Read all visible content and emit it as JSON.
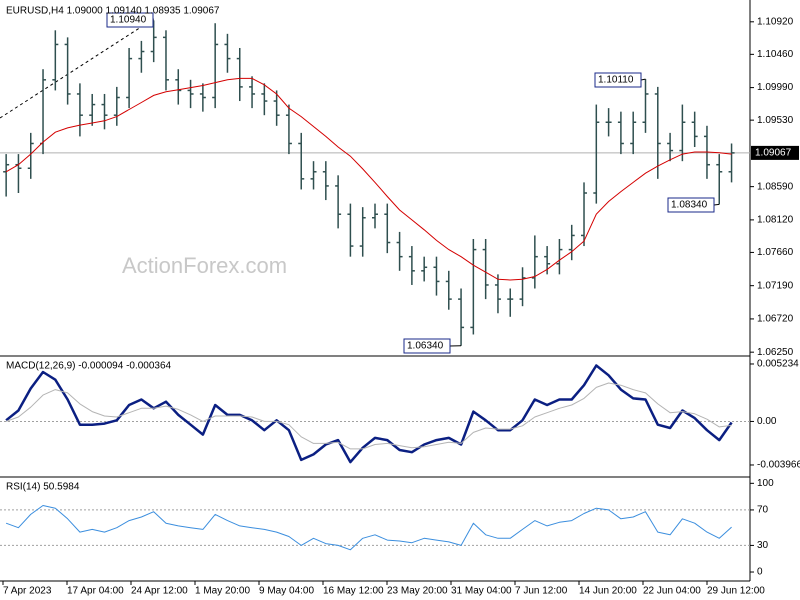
{
  "chart_data": [
    {
      "type": "ohlc",
      "title": "EURUSD,H4  1.09000 1.09140 1.08935 1.09067",
      "watermark": "ActionForex.com",
      "color": "#2f4f4f",
      "ma_color": "#d40000",
      "open": [
        1.088,
        1.089,
        1.0885,
        1.092,
        1.101,
        1.106,
        1.099,
        1.096,
        1.0975,
        1.096,
        1.0985,
        1.104,
        1.105,
        1.107,
        1.101,
        1.0995,
        1.099,
        1.0985,
        1.106,
        1.104,
        1.1,
        1.099,
        1.098,
        1.096,
        1.092,
        1.087,
        1.088,
        1.086,
        1.082,
        1.0775,
        1.0815,
        1.082,
        1.078,
        1.076,
        1.074,
        1.0745,
        1.0725,
        1.07,
        1.066,
        1.077,
        1.072,
        1.07,
        1.07,
        1.073,
        1.076,
        1.075,
        1.077,
        1.079,
        1.085,
        1.095,
        1.095,
        1.092,
        1.095,
        1.099,
        1.092,
        1.091,
        1.095,
        1.093,
        1.089,
        1.088
      ],
      "high": [
        1.0905,
        1.0905,
        1.0935,
        1.1025,
        1.108,
        1.107,
        1.1005,
        1.099,
        1.099,
        1.1,
        1.1055,
        1.1065,
        1.1094,
        1.108,
        1.1025,
        1.101,
        1.1005,
        1.109,
        1.1075,
        1.1055,
        1.1015,
        1.1005,
        1.0995,
        1.0975,
        1.0935,
        1.0895,
        1.0895,
        1.0875,
        1.0835,
        1.083,
        1.0835,
        1.0835,
        1.0795,
        1.0775,
        1.076,
        1.076,
        1.074,
        1.0715,
        1.0785,
        1.0785,
        1.0735,
        1.0715,
        1.0745,
        1.079,
        1.0775,
        1.0785,
        1.0805,
        1.0865,
        1.0975,
        1.097,
        1.0965,
        1.0965,
        1.1011,
        1.1,
        1.0935,
        1.0975,
        1.0965,
        1.0945,
        1.0905,
        1.092
      ],
      "low": [
        1.0845,
        1.085,
        1.087,
        1.0905,
        1.0995,
        1.0975,
        1.093,
        1.0945,
        1.094,
        1.0945,
        1.097,
        1.102,
        1.1035,
        1.0995,
        1.0975,
        1.097,
        1.0965,
        1.097,
        1.102,
        1.098,
        1.097,
        1.096,
        1.0945,
        1.0905,
        1.0855,
        1.0855,
        1.084,
        1.08,
        1.076,
        1.076,
        1.08,
        1.0765,
        1.074,
        1.072,
        1.0725,
        1.0705,
        1.0685,
        1.0634,
        1.065,
        1.07,
        1.068,
        1.0675,
        1.069,
        1.0715,
        1.0735,
        1.0735,
        1.0755,
        1.0775,
        1.0835,
        1.093,
        1.0905,
        1.0905,
        1.0935,
        1.087,
        1.0895,
        1.0895,
        1.0915,
        1.087,
        1.0834,
        1.0865
      ],
      "close": [
        1.089,
        1.0885,
        1.092,
        1.101,
        1.106,
        1.099,
        1.096,
        1.0975,
        1.096,
        1.0985,
        1.104,
        1.105,
        1.107,
        1.101,
        1.0995,
        1.099,
        1.0985,
        1.106,
        1.104,
        1.1,
        1.099,
        1.098,
        1.096,
        1.092,
        1.087,
        1.088,
        1.086,
        1.082,
        1.0775,
        1.0815,
        1.082,
        1.078,
        1.076,
        1.074,
        1.0745,
        1.0725,
        1.07,
        1.066,
        1.077,
        1.072,
        1.07,
        1.07,
        1.073,
        1.076,
        1.075,
        1.077,
        1.079,
        1.085,
        1.095,
        1.095,
        1.092,
        1.095,
        1.099,
        1.092,
        1.091,
        1.095,
        1.093,
        1.089,
        1.088,
        1.09067
      ],
      "ma_values": [
        1.088,
        1.089,
        1.0905,
        1.0922,
        1.0936,
        1.0942,
        1.0946,
        1.0949,
        1.0952,
        1.0958,
        1.0968,
        1.0978,
        1.0988,
        1.0993,
        1.0996,
        1.0999,
        1.1002,
        1.1006,
        1.101,
        1.1012,
        1.1012,
        1.1003,
        1.099,
        1.097,
        1.0958,
        1.0944,
        1.093,
        1.0915,
        1.0902,
        1.0884,
        1.0865,
        1.0845,
        1.0826,
        1.0812,
        1.0798,
        1.0783,
        1.077,
        1.076,
        1.0748,
        1.0738,
        1.0728,
        1.0727,
        1.0728,
        1.0732,
        1.0742,
        1.0755,
        1.0767,
        1.0782,
        1.082,
        1.0838,
        1.0852,
        1.0865,
        1.0878,
        1.0888,
        1.0897,
        1.0905,
        1.0908,
        1.0908,
        1.0907,
        1.0905
      ],
      "last_price": {
        "value": 1.09067,
        "label": "1.09067"
      },
      "annotations": [
        "1.10940",
        "1.10110",
        "1.08340",
        "1.06340"
      ],
      "ylim": [
        1.0621,
        1.112
      ],
      "yticks": [
        {
          "value": 1.1092,
          "label": "1.10920"
        },
        {
          "value": 1.1046,
          "label": "1.10460"
        },
        {
          "value": 1.0999,
          "label": "1.09990"
        },
        {
          "value": 1.0953,
          "label": "1.09530"
        },
        {
          "value": 1.0859,
          "label": "1.08590"
        },
        {
          "value": 1.0812,
          "label": "1.08120"
        },
        {
          "value": 1.0766,
          "label": "1.07660"
        },
        {
          "value": 1.0719,
          "label": "1.07190"
        },
        {
          "value": 1.0672,
          "label": "1.06720"
        },
        {
          "value": 1.0625,
          "label": "1.06250"
        }
      ],
      "x_labels": [
        "7 Apr 2023",
        "17 Apr 04:00",
        "24 Apr 12:00",
        "1 May 20:00",
        "9 May 04:00",
        "16 May 12:00",
        "23 May 20:00",
        "31 May 04:00",
        "7 Jun 12:00",
        "14 Jun 20:00",
        "22 Jun 04:00",
        "29 Jun 12:00"
      ]
    },
    {
      "type": "line",
      "title": "MACD(12,26,9) -0.000094 -0.000364",
      "series": [
        {
          "color": "#0b1f82",
          "width": 2.5,
          "values": [
            0.0001,
            0.001,
            0.003,
            0.0045,
            0.0038,
            0.002,
            -0.0003,
            -0.0003,
            -0.0002,
            0.0001,
            0.0015,
            0.002,
            0.0012,
            0.0018,
            0.0006,
            -0.0003,
            -0.0012,
            0.0015,
            0.0006,
            0.0006,
            0.0001,
            -0.0008,
            0.0001,
            -0.0008,
            -0.0035,
            -0.003,
            -0.0021,
            -0.0017,
            -0.0037,
            -0.0024,
            -0.0015,
            -0.0017,
            -0.0026,
            -0.0028,
            -0.0021,
            -0.0017,
            -0.0015,
            -0.0021,
            0.0009,
            0.0001,
            -0.0008,
            -0.0008,
            0.0001,
            0.002,
            0.0015,
            0.002,
            0.002,
            0.0033,
            0.0051,
            0.0042,
            0.0029,
            0.0021,
            0.002,
            -0.0003,
            -0.0006,
            0.001,
            0.0003,
            -0.0008,
            -0.0017,
            -9.4e-05
          ]
        },
        {
          "color": "#b4b4b4",
          "width": 1,
          "values": [
            0.0,
            0.0004,
            0.0013,
            0.0024,
            0.0029,
            0.0026,
            0.0016,
            0.0009,
            0.0005,
            0.0004,
            0.0008,
            0.0012,
            0.0012,
            0.0014,
            0.0011,
            0.0006,
            0.0,
            0.0005,
            0.0005,
            0.0005,
            0.0004,
            0.0,
            0.0,
            -0.0003,
            -0.0014,
            -0.002,
            -0.002,
            -0.0019,
            -0.0025,
            -0.0025,
            -0.0021,
            -0.002,
            -0.0022,
            -0.0024,
            -0.0023,
            -0.0021,
            -0.0019,
            -0.002,
            -0.001,
            -0.0006,
            -0.0007,
            -0.0007,
            -0.0004,
            0.0004,
            0.0008,
            0.0012,
            0.0015,
            0.0021,
            0.0031,
            0.0035,
            0.0033,
            0.0029,
            0.0026,
            0.0016,
            0.0008,
            0.0009,
            0.0007,
            0.0002,
            -0.0005,
            -0.000364
          ]
        }
      ],
      "ylim": [
        -0.00497,
        0.00587
      ],
      "yticks": [
        0.005234,
        {
          "value": 0,
          "label": "0.00"
        },
        -0.003966
      ],
      "levels": [
        0
      ]
    },
    {
      "type": "line",
      "title": "RSI(14) 50.5984",
      "series": [
        {
          "color": "#3b8ede",
          "width": 1,
          "values": [
            55,
            50,
            65,
            75,
            72,
            60,
            45,
            48,
            45,
            50,
            58,
            62,
            68,
            55,
            52,
            50,
            48,
            65,
            58,
            52,
            50,
            48,
            45,
            40,
            30,
            38,
            32,
            30,
            25,
            38,
            42,
            36,
            35,
            33,
            38,
            36,
            34,
            30,
            55,
            42,
            38,
            38,
            48,
            58,
            52,
            56,
            58,
            66,
            72,
            70,
            60,
            62,
            68,
            45,
            42,
            60,
            55,
            45,
            38,
            50.5984
          ]
        }
      ],
      "ylim": [
        -9,
        106
      ],
      "yticks": [
        100,
        70,
        30,
        0
      ],
      "levels": [
        70,
        30
      ]
    }
  ]
}
